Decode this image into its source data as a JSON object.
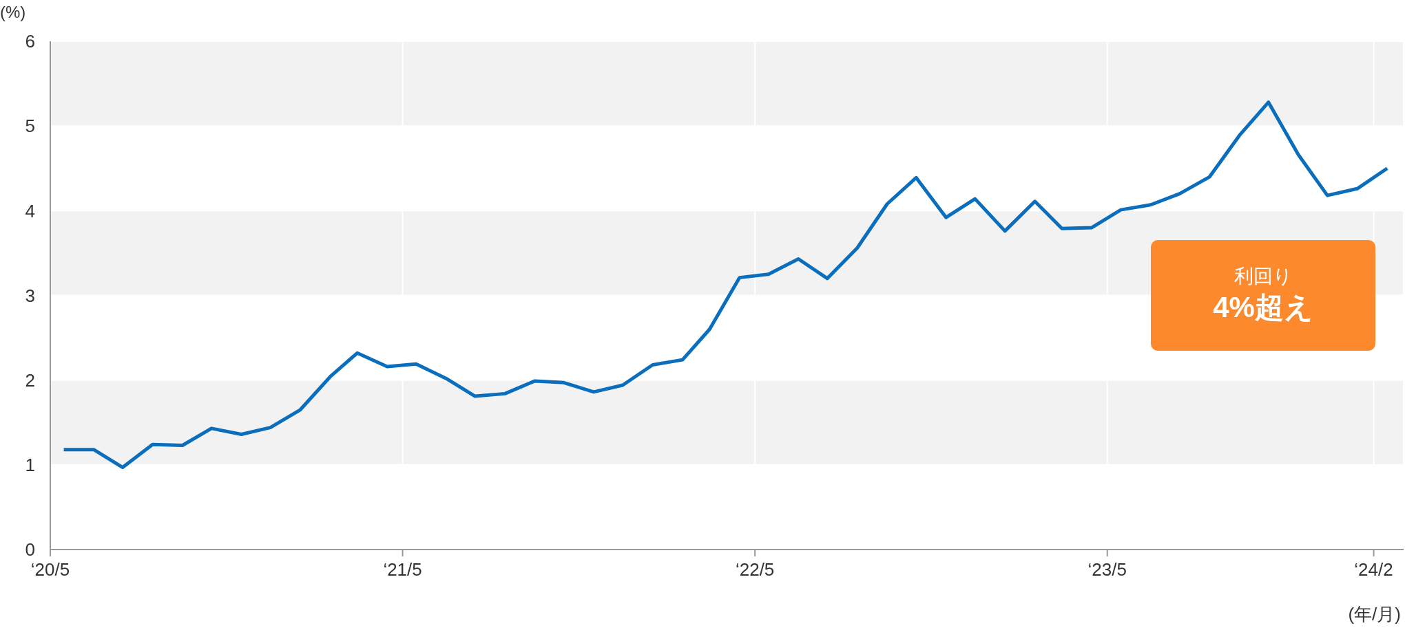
{
  "chart_data": {
    "type": "line",
    "ylabel": "(%)",
    "xlabel": "(年/月)",
    "x": [
      "2020-05-15",
      "2020-06-15",
      "2020-07-15",
      "2020-08-15",
      "2020-09-15",
      "2020-10-15",
      "2020-11-15",
      "2020-12-15",
      "2021-01-15",
      "2021-02-15",
      "2021-03-15",
      "2021-04-15",
      "2021-05-15",
      "2021-06-15",
      "2021-07-15",
      "2021-08-15",
      "2021-09-15",
      "2021-10-15",
      "2021-11-15",
      "2021-12-15",
      "2022-01-15",
      "2022-02-15",
      "2022-03-15",
      "2022-04-15",
      "2022-05-15",
      "2022-06-15",
      "2022-07-15",
      "2022-08-15",
      "2022-09-15",
      "2022-10-15",
      "2022-11-15",
      "2022-12-15",
      "2023-01-15",
      "2023-02-15",
      "2023-03-15",
      "2023-04-15",
      "2023-05-15",
      "2023-06-15",
      "2023-07-15",
      "2023-08-15",
      "2023-09-15",
      "2023-10-15",
      "2023-11-15",
      "2023-12-15",
      "2024-01-15",
      "2024-02-15"
    ],
    "series": [
      {
        "color": "#0a6ebd",
        "values": [
          1.18,
          1.18,
          0.97,
          1.24,
          1.23,
          1.43,
          1.36,
          1.44,
          1.65,
          2.04,
          2.32,
          2.16,
          2.19,
          2.02,
          1.81,
          1.84,
          1.99,
          1.97,
          1.86,
          1.94,
          2.18,
          2.24,
          2.6,
          3.21,
          3.25,
          3.43,
          3.2,
          3.56,
          4.08,
          4.39,
          3.92,
          4.14,
          3.76,
          4.11,
          3.79,
          3.8,
          4.01,
          4.07,
          4.2,
          4.4,
          4.89,
          5.28,
          4.66,
          4.18,
          4.26,
          4.5
        ]
      }
    ],
    "xlim": [
      "2020-05-01",
      "2024-03-03"
    ],
    "xticks": [
      {
        "value": "2020-05-01",
        "label": "‘20/5"
      },
      {
        "value": "2021-05-01",
        "label": "‘21/5"
      },
      {
        "value": "2022-05-01",
        "label": "‘22/5"
      },
      {
        "value": "2023-05-01",
        "label": "‘23/5"
      },
      {
        "value": "2024-02-01",
        "label": "‘24/2"
      }
    ],
    "ylim": [
      0,
      6
    ],
    "yticks": [
      0,
      1,
      2,
      3,
      4,
      5,
      6
    ],
    "grid": true,
    "marker": "none",
    "line_style": "solid",
    "annotations": [
      "利回り\n4%超え"
    ]
  }
}
